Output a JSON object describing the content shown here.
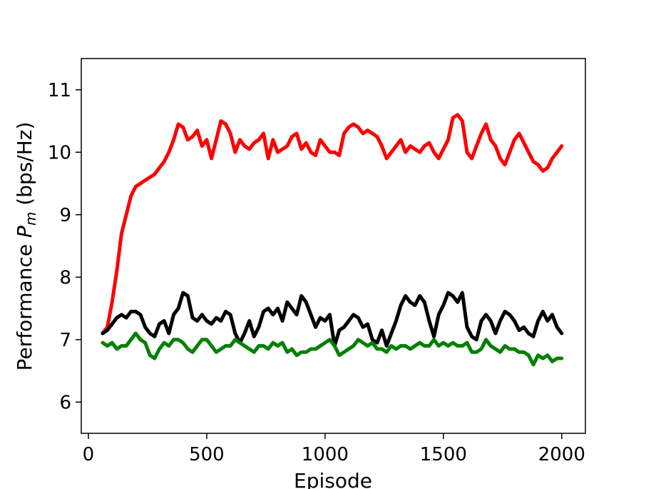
{
  "chart_data": {
    "type": "line",
    "title": "",
    "xlabel": "Episode",
    "ylabel": "Performance P_m (bps/Hz)",
    "ylabel_parts": {
      "prefix": "Performance ",
      "symbol": "P",
      "subscript": "m",
      "suffix": "  (bps/Hz)"
    },
    "xlim": [
      -30,
      2100
    ],
    "ylim": [
      5.5,
      11.5
    ],
    "xticks": [
      0,
      500,
      1000,
      1500,
      2000
    ],
    "yticks": [
      6,
      7,
      8,
      9,
      10,
      11
    ],
    "grid": false,
    "legend": "none",
    "series": [
      {
        "color": "#ff0000",
        "x": [
          60,
          80,
          100,
          120,
          140,
          160,
          180,
          200,
          220,
          240,
          260,
          280,
          300,
          320,
          340,
          360,
          380,
          400,
          420,
          440,
          460,
          480,
          500,
          520,
          540,
          560,
          580,
          600,
          620,
          640,
          660,
          680,
          700,
          720,
          740,
          760,
          780,
          800,
          820,
          840,
          860,
          880,
          900,
          920,
          940,
          960,
          980,
          1000,
          1020,
          1040,
          1060,
          1080,
          1100,
          1120,
          1140,
          1160,
          1180,
          1200,
          1220,
          1240,
          1260,
          1280,
          1300,
          1320,
          1340,
          1360,
          1380,
          1400,
          1420,
          1440,
          1460,
          1480,
          1500,
          1520,
          1540,
          1560,
          1580,
          1600,
          1620,
          1640,
          1660,
          1680,
          1700,
          1720,
          1740,
          1760,
          1780,
          1800,
          1820,
          1840,
          1860,
          1880,
          1900,
          1920,
          1940,
          1960,
          1980,
          2000
        ],
        "y": [
          7.1,
          7.2,
          7.6,
          8.1,
          8.7,
          9.0,
          9.3,
          9.45,
          9.5,
          9.55,
          9.6,
          9.65,
          9.75,
          9.85,
          10.0,
          10.2,
          10.45,
          10.4,
          10.2,
          10.25,
          10.35,
          10.1,
          10.2,
          9.9,
          10.2,
          10.5,
          10.45,
          10.3,
          10.0,
          10.2,
          10.1,
          10.05,
          10.15,
          10.2,
          10.3,
          9.9,
          10.2,
          10.0,
          10.05,
          10.1,
          10.25,
          10.3,
          10.05,
          10.15,
          10.0,
          9.95,
          10.2,
          10.1,
          10.0,
          10.0,
          9.95,
          10.3,
          10.4,
          10.45,
          10.4,
          10.3,
          10.35,
          10.3,
          10.25,
          10.1,
          9.9,
          10.0,
          10.1,
          10.2,
          10.0,
          10.1,
          10.05,
          10.0,
          10.1,
          10.15,
          10.0,
          9.9,
          10.05,
          10.2,
          10.55,
          10.6,
          10.5,
          10.0,
          9.9,
          10.1,
          10.3,
          10.45,
          10.2,
          10.1,
          9.9,
          9.8,
          10.0,
          10.2,
          10.3,
          10.15,
          10.0,
          9.85,
          9.8,
          9.7,
          9.75,
          9.9,
          10.0,
          10.1
        ]
      },
      {
        "color": "#000000",
        "x": [
          60,
          80,
          100,
          120,
          140,
          160,
          180,
          200,
          220,
          240,
          260,
          280,
          300,
          320,
          340,
          360,
          380,
          400,
          420,
          440,
          460,
          480,
          500,
          520,
          540,
          560,
          580,
          600,
          620,
          640,
          660,
          680,
          700,
          720,
          740,
          760,
          780,
          800,
          820,
          840,
          860,
          880,
          900,
          920,
          940,
          960,
          980,
          1000,
          1020,
          1040,
          1060,
          1080,
          1100,
          1120,
          1140,
          1160,
          1180,
          1200,
          1220,
          1240,
          1260,
          1280,
          1300,
          1320,
          1340,
          1360,
          1380,
          1400,
          1420,
          1440,
          1460,
          1480,
          1500,
          1520,
          1540,
          1560,
          1580,
          1600,
          1620,
          1640,
          1660,
          1680,
          1700,
          1720,
          1740,
          1760,
          1780,
          1800,
          1820,
          1840,
          1860,
          1880,
          1900,
          1920,
          1940,
          1960,
          1980,
          2000
        ],
        "y": [
          7.1,
          7.15,
          7.25,
          7.35,
          7.4,
          7.35,
          7.45,
          7.45,
          7.4,
          7.2,
          7.1,
          7.05,
          7.25,
          7.3,
          7.1,
          7.4,
          7.5,
          7.75,
          7.7,
          7.35,
          7.3,
          7.4,
          7.3,
          7.25,
          7.35,
          7.3,
          7.45,
          7.4,
          7.1,
          6.95,
          7.1,
          7.3,
          7.05,
          7.2,
          7.45,
          7.5,
          7.4,
          7.5,
          7.3,
          7.6,
          7.5,
          7.4,
          7.7,
          7.6,
          7.4,
          7.2,
          7.35,
          7.3,
          7.4,
          6.9,
          7.15,
          7.2,
          7.3,
          7.4,
          7.35,
          7.2,
          7.25,
          7.0,
          6.95,
          7.15,
          6.9,
          7.1,
          7.3,
          7.55,
          7.7,
          7.6,
          7.55,
          7.7,
          7.6,
          7.3,
          7.05,
          7.4,
          7.55,
          7.75,
          7.7,
          7.6,
          7.75,
          7.2,
          7.05,
          7.0,
          7.3,
          7.4,
          7.3,
          7.1,
          7.3,
          7.45,
          7.4,
          7.3,
          7.15,
          7.2,
          7.1,
          7.05,
          7.3,
          7.45,
          7.3,
          7.4,
          7.2,
          7.1
        ]
      },
      {
        "color": "#008000",
        "x": [
          60,
          80,
          100,
          120,
          140,
          160,
          180,
          200,
          220,
          240,
          260,
          280,
          300,
          320,
          340,
          360,
          380,
          400,
          420,
          440,
          460,
          480,
          500,
          520,
          540,
          560,
          580,
          600,
          620,
          640,
          660,
          680,
          700,
          720,
          740,
          760,
          780,
          800,
          820,
          840,
          860,
          880,
          900,
          920,
          940,
          960,
          980,
          1000,
          1020,
          1040,
          1060,
          1080,
          1100,
          1120,
          1140,
          1160,
          1180,
          1200,
          1220,
          1240,
          1260,
          1280,
          1300,
          1320,
          1340,
          1360,
          1380,
          1400,
          1420,
          1440,
          1460,
          1480,
          1500,
          1520,
          1540,
          1560,
          1580,
          1600,
          1620,
          1640,
          1660,
          1680,
          1700,
          1720,
          1740,
          1760,
          1780,
          1800,
          1820,
          1840,
          1860,
          1880,
          1900,
          1920,
          1940,
          1960,
          1980,
          2000
        ],
        "y": [
          6.95,
          6.9,
          6.95,
          6.85,
          6.9,
          6.9,
          7.0,
          7.1,
          7.0,
          6.95,
          6.75,
          6.7,
          6.85,
          6.95,
          6.9,
          7.0,
          7.0,
          6.95,
          6.85,
          6.8,
          6.9,
          7.0,
          7.0,
          6.9,
          6.8,
          6.85,
          6.9,
          6.9,
          7.0,
          6.95,
          6.9,
          6.85,
          6.8,
          6.9,
          6.9,
          6.85,
          6.95,
          6.9,
          6.95,
          6.8,
          6.85,
          6.75,
          6.8,
          6.8,
          6.85,
          6.85,
          6.9,
          6.95,
          7.0,
          6.9,
          6.75,
          6.8,
          6.85,
          6.9,
          7.0,
          6.95,
          6.9,
          6.95,
          6.85,
          6.85,
          6.8,
          6.9,
          6.85,
          6.9,
          6.9,
          6.85,
          6.9,
          6.95,
          6.9,
          6.9,
          7.0,
          6.9,
          6.95,
          6.9,
          6.95,
          6.9,
          6.9,
          6.95,
          6.8,
          6.8,
          6.85,
          7.0,
          6.9,
          6.85,
          6.8,
          6.9,
          6.85,
          6.85,
          6.8,
          6.8,
          6.75,
          6.6,
          6.75,
          6.7,
          6.75,
          6.65,
          6.7,
          6.7
        ]
      }
    ]
  }
}
